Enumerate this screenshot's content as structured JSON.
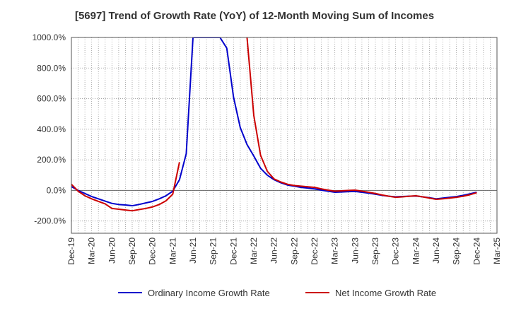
{
  "chart_data": {
    "type": "line",
    "title": "[5697]  Trend of Growth Rate (YoY) of 12-Month Moving Sum of Incomes",
    "xlabel": "",
    "ylabel": "",
    "ylim": [
      -280,
      1000
    ],
    "y_ticks": [
      -200,
      0,
      200,
      400,
      600,
      800,
      1000
    ],
    "y_tick_labels": [
      "-200.0%",
      "0.0%",
      "200.0%",
      "400.0%",
      "600.0%",
      "800.0%",
      "1000.0%"
    ],
    "x_tick_labels": [
      "Dec-19",
      "Mar-20",
      "Jun-20",
      "Sep-20",
      "Dec-20",
      "Mar-21",
      "Jun-21",
      "Sep-21",
      "Dec-21",
      "Mar-22",
      "Jun-22",
      "Sep-22",
      "Dec-22",
      "Mar-23",
      "Jun-23",
      "Sep-23",
      "Dec-23",
      "Mar-24",
      "Jun-24",
      "Sep-24",
      "Dec-24",
      "Mar-25"
    ],
    "x_start": "Dec-19",
    "x_end": "Mar-25",
    "grid": true,
    "legend_position": "bottom",
    "series": [
      {
        "name": "Ordinary Income Growth Rate",
        "color": "#0000cc",
        "points": [
          [
            "Dec-19",
            25
          ],
          [
            "Jan-20",
            0
          ],
          [
            "Feb-20",
            -20
          ],
          [
            "Mar-20",
            -40
          ],
          [
            "Apr-20",
            -55
          ],
          [
            "May-20",
            -70
          ],
          [
            "Jun-20",
            -85
          ],
          [
            "Jul-20",
            -92
          ],
          [
            "Aug-20",
            -95
          ],
          [
            "Sep-20",
            -100
          ],
          [
            "Oct-20",
            -92
          ],
          [
            "Nov-20",
            -82
          ],
          [
            "Dec-20",
            -72
          ],
          [
            "Jan-21",
            -55
          ],
          [
            "Feb-21",
            -35
          ],
          [
            "Mar-21",
            -5
          ],
          [
            "Apr-21",
            70
          ],
          [
            "May-21",
            240
          ],
          [
            "Jun-21",
            1000
          ],
          [
            "Oct-21",
            1000
          ],
          [
            "Nov-21",
            930
          ],
          [
            "Dec-21",
            610
          ],
          [
            "Jan-22",
            410
          ],
          [
            "Feb-22",
            300
          ],
          [
            "Mar-22",
            225
          ],
          [
            "Apr-22",
            145
          ],
          [
            "May-22",
            100
          ],
          [
            "Jun-22",
            70
          ],
          [
            "Jul-22",
            50
          ],
          [
            "Aug-22",
            35
          ],
          [
            "Sep-22",
            28
          ],
          [
            "Oct-22",
            20
          ],
          [
            "Nov-22",
            15
          ],
          [
            "Dec-22",
            10
          ],
          [
            "Jan-23",
            2
          ],
          [
            "Feb-23",
            -5
          ],
          [
            "Mar-23",
            -12
          ],
          [
            "Apr-23",
            -10
          ],
          [
            "May-23",
            -8
          ],
          [
            "Jun-23",
            -7
          ],
          [
            "Jul-23",
            -12
          ],
          [
            "Aug-23",
            -18
          ],
          [
            "Sep-23",
            -25
          ],
          [
            "Oct-23",
            -32
          ],
          [
            "Nov-23",
            -38
          ],
          [
            "Dec-23",
            -42
          ],
          [
            "Jan-24",
            -40
          ],
          [
            "Feb-24",
            -38
          ],
          [
            "Mar-24",
            -36
          ],
          [
            "Apr-24",
            -42
          ],
          [
            "May-24",
            -48
          ],
          [
            "Jun-24",
            -55
          ],
          [
            "Jul-24",
            -50
          ],
          [
            "Aug-24",
            -45
          ],
          [
            "Sep-24",
            -40
          ],
          [
            "Oct-24",
            -32
          ],
          [
            "Nov-24",
            -22
          ],
          [
            "Dec-24",
            -12
          ]
        ]
      },
      {
        "name": "Net Income Growth Rate",
        "color": "#cc0000",
        "segments": [
          [
            [
              "Dec-19",
              40
            ],
            [
              "Jan-20",
              -5
            ],
            [
              "Feb-20",
              -35
            ],
            [
              "Mar-20",
              -55
            ],
            [
              "Apr-20",
              -72
            ],
            [
              "May-20",
              -88
            ],
            [
              "Jun-20",
              -118
            ],
            [
              "Jul-20",
              -123
            ],
            [
              "Aug-20",
              -128
            ],
            [
              "Sep-20",
              -133
            ],
            [
              "Oct-20",
              -125
            ],
            [
              "Nov-20",
              -118
            ],
            [
              "Dec-20",
              -108
            ],
            [
              "Jan-21",
              -92
            ],
            [
              "Feb-21",
              -68
            ],
            [
              "Mar-21",
              -25
            ],
            [
              "Apr-21",
              185
            ]
          ],
          [
            [
              "Feb-22",
              1000
            ],
            [
              "Mar-22",
              490
            ],
            [
              "Apr-22",
              230
            ],
            [
              "May-22",
              125
            ],
            [
              "Jun-22",
              75
            ],
            [
              "Jul-22",
              55
            ],
            [
              "Aug-22",
              40
            ],
            [
              "Sep-22",
              32
            ],
            [
              "Oct-22",
              28
            ],
            [
              "Nov-22",
              24
            ],
            [
              "Dec-22",
              20
            ],
            [
              "Jan-23",
              10
            ],
            [
              "Feb-23",
              2
            ],
            [
              "Mar-23",
              -5
            ],
            [
              "Apr-23",
              -3
            ],
            [
              "May-23",
              0
            ],
            [
              "Jun-23",
              2
            ],
            [
              "Jul-23",
              -5
            ],
            [
              "Aug-23",
              -12
            ],
            [
              "Sep-23",
              -20
            ],
            [
              "Oct-23",
              -30
            ],
            [
              "Nov-23",
              -38
            ],
            [
              "Dec-23",
              -45
            ],
            [
              "Jan-24",
              -42
            ],
            [
              "Feb-24",
              -38
            ],
            [
              "Mar-24",
              -35
            ],
            [
              "Apr-24",
              -42
            ],
            [
              "May-24",
              -50
            ],
            [
              "Jun-24",
              -58
            ],
            [
              "Jul-24",
              -55
            ],
            [
              "Aug-24",
              -50
            ],
            [
              "Sep-24",
              -45
            ],
            [
              "Oct-24",
              -38
            ],
            [
              "Nov-24",
              -28
            ],
            [
              "Dec-24",
              -15
            ]
          ]
        ]
      }
    ]
  }
}
